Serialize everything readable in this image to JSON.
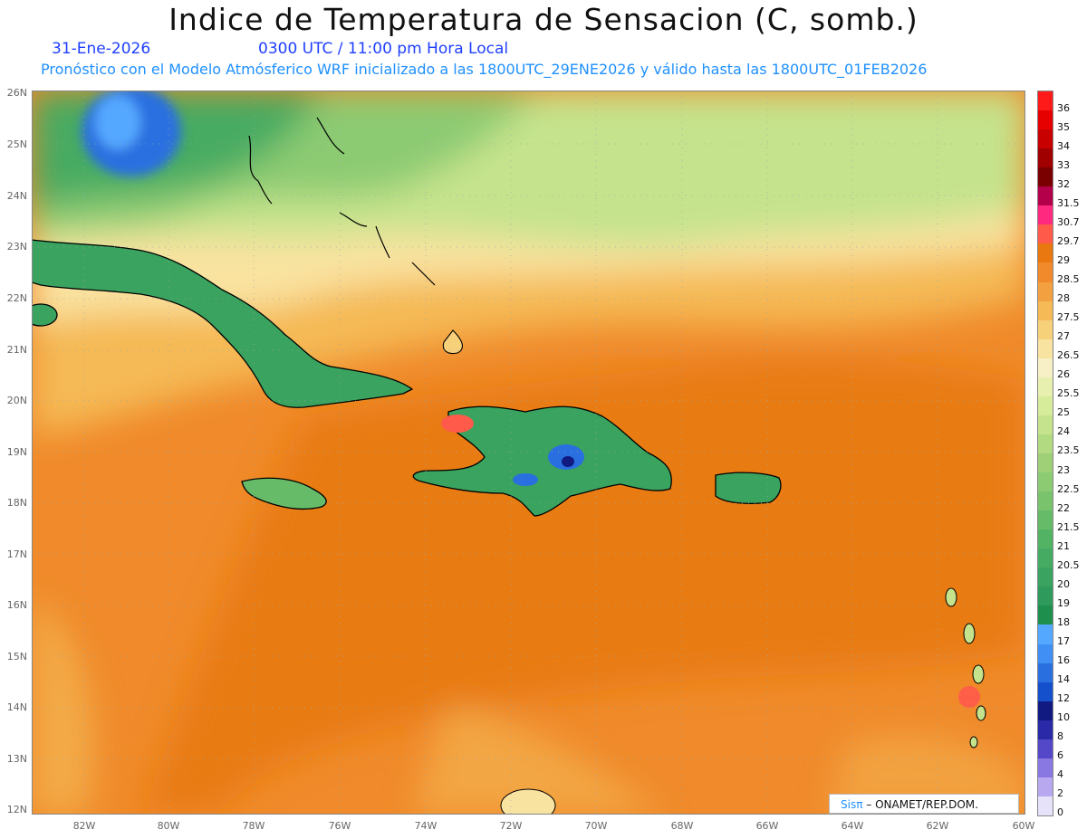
{
  "header": {
    "title": "Indice de Temperatura de Sensacion (C, somb.)",
    "date": "31-Ene-2026",
    "time": "0300 UTC / 11:00 pm Hora Local",
    "forecast_info": "Pronóstico con el Modelo Atmósferico WRF inicializado a las 1800UTC_29ENE2026 y válido hasta las  1800UTC_01FEB2026"
  },
  "axes": {
    "lat_labels": [
      "26N",
      "25N",
      "24N",
      "23N",
      "22N",
      "21N",
      "20N",
      "19N",
      "18N",
      "17N",
      "16N",
      "15N",
      "14N",
      "13N",
      "12N"
    ],
    "lon_labels": [
      "82W",
      "80W",
      "78W",
      "76W",
      "74W",
      "72W",
      "70W",
      "68W",
      "66W",
      "64W",
      "62W",
      "60W"
    ]
  },
  "colorbar": {
    "labels": [
      "36",
      "35",
      "34",
      "33",
      "32",
      "31.5",
      "30.7",
      "29.7",
      "29",
      "28.5",
      "28",
      "27.5",
      "27",
      "26.5",
      "26",
      "25.5",
      "25",
      "24",
      "23.5",
      "23",
      "22.5",
      "22",
      "21.5",
      "21",
      "20.5",
      "20",
      "19",
      "18",
      "17",
      "16",
      "14",
      "12",
      "10",
      "8",
      "6",
      "4",
      "2",
      "0"
    ],
    "colors": [
      "#ff1a1a",
      "#e60000",
      "#c80000",
      "#a00000",
      "#7a0000",
      "#b4004a",
      "#ff2a7f",
      "#ff5a4a",
      "#e8780f",
      "#f08a2a",
      "#f2a040",
      "#f5b955",
      "#f7d07a",
      "#f9e3a0",
      "#f7efc5",
      "#e8f0b0",
      "#d6ec9a",
      "#c5e38c",
      "#b2da80",
      "#9fd077",
      "#8ccb72",
      "#79c36d",
      "#66bb69",
      "#53b365",
      "#46ab62",
      "#3aa35f",
      "#2e9a5b",
      "#1f8f4e",
      "#55a8ff",
      "#3f8ff5",
      "#2a6fe0",
      "#1550cc",
      "#101a80",
      "#2a2aa8",
      "#5548c8",
      "#8a78e2",
      "#b8a8f0",
      "#e6e2fa"
    ]
  },
  "map": {
    "colors": {
      "ocean_hot": "#e8780f",
      "ocean_warm": "#f08a2a",
      "ocean_mild": "#f5b955",
      "ocean_cool": "#f9e3a0",
      "land_green": "#3aa35f",
      "land_deep": "#1f8f4e",
      "cold_blue": "#2a6fe0",
      "north_green": "#8ccb72",
      "north_pale": "#c5e38c",
      "hot_spot": "#ff5a4a"
    }
  },
  "credit": {
    "sis": "Sisπ",
    "text": "– ONAMET/REP.DOM."
  }
}
